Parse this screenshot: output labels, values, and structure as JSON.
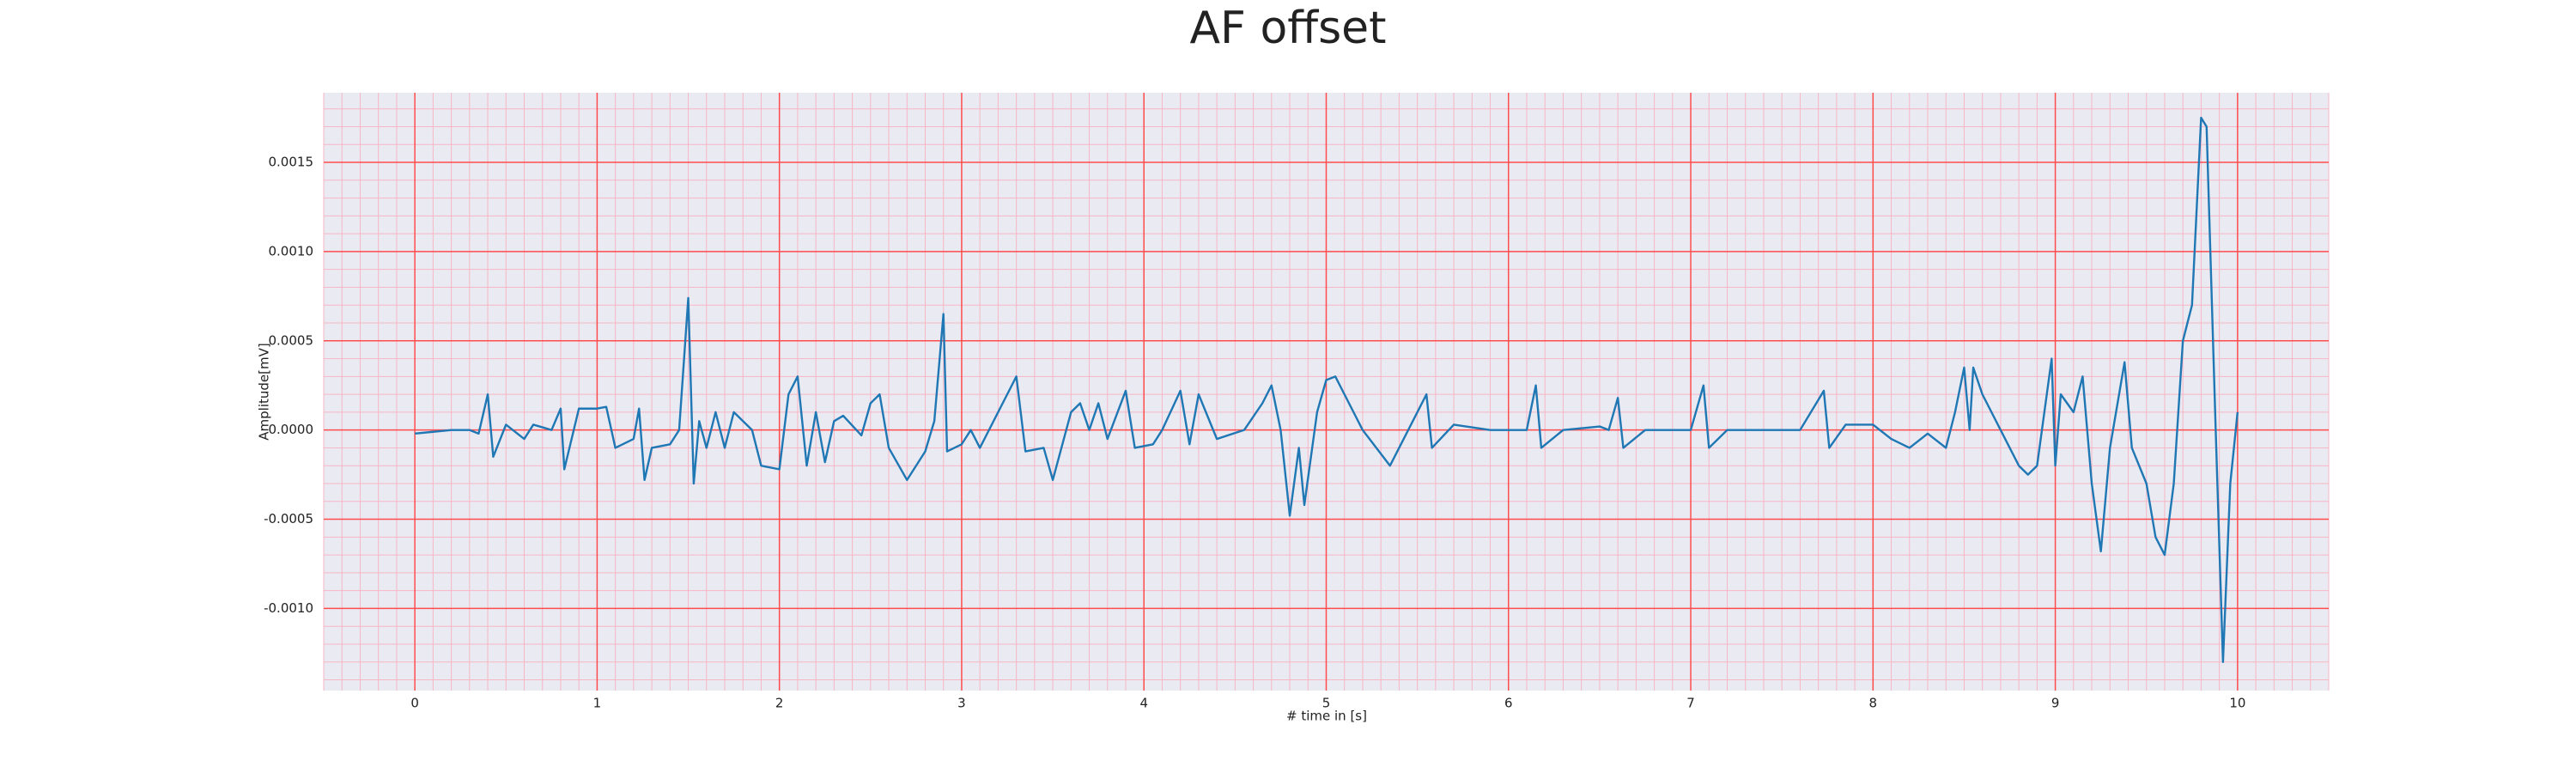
{
  "chart_data": {
    "type": "line",
    "title": "AF offset",
    "xlabel": "# time in [s]",
    "ylabel": "Amplitude[mV]",
    "xlim": [
      -0.5,
      10.5
    ],
    "ylim": [
      -0.00146,
      0.00189
    ],
    "xticks": [
      0,
      1,
      2,
      3,
      4,
      5,
      6,
      7,
      8,
      9,
      10
    ],
    "yticks": [
      {
        "value": -0.001,
        "label": "-0.0010"
      },
      {
        "value": -0.0005,
        "label": "-0.0005"
      },
      {
        "value": 0,
        "label": "0.0000"
      },
      {
        "value": 0.0005,
        "label": "0.0005"
      },
      {
        "value": 0.001,
        "label": "0.0010"
      },
      {
        "value": 0.0015,
        "label": "0.0015"
      }
    ],
    "grid": true,
    "minor_grid": {
      "x": 0.1,
      "y": 0.0001
    },
    "background": "#eaeaf2",
    "grid_color": "#ff4d4d",
    "minor_grid_color": "#f7b6c4",
    "series": [
      {
        "color": "#1f77b4",
        "x": [
          0,
          0.1,
          0.2,
          0.3,
          0.35,
          0.4,
          0.43,
          0.5,
          0.6,
          0.65,
          0.75,
          0.8,
          0.82,
          0.9,
          1.0,
          1.05,
          1.1,
          1.2,
          1.23,
          1.26,
          1.3,
          1.4,
          1.45,
          1.5,
          1.53,
          1.56,
          1.6,
          1.65,
          1.7,
          1.75,
          1.85,
          1.9,
          2.0,
          2.05,
          2.1,
          2.15,
          2.2,
          2.25,
          2.3,
          2.35,
          2.45,
          2.5,
          2.55,
          2.6,
          2.7,
          2.8,
          2.85,
          2.9,
          2.92,
          3.0,
          3.05,
          3.1,
          3.2,
          3.25,
          3.3,
          3.35,
          3.45,
          3.5,
          3.6,
          3.65,
          3.7,
          3.75,
          3.8,
          3.9,
          3.95,
          4.05,
          4.1,
          4.2,
          4.25,
          4.3,
          4.4,
          4.55,
          4.65,
          4.7,
          4.75,
          4.8,
          4.85,
          4.88,
          4.95,
          5.0,
          5.05,
          5.1,
          5.2,
          5.35,
          5.4,
          5.55,
          5.58,
          5.7,
          5.9,
          6.1,
          6.15,
          6.18,
          6.3,
          6.5,
          6.55,
          6.6,
          6.63,
          6.75,
          7.0,
          7.07,
          7.1,
          7.2,
          7.6,
          7.73,
          7.76,
          7.85,
          8.0,
          8.1,
          8.2,
          8.3,
          8.4,
          8.45,
          8.5,
          8.53,
          8.55,
          8.6,
          8.7,
          8.75,
          8.8,
          8.85,
          8.9,
          8.98,
          9.0,
          9.03,
          9.1,
          9.15,
          9.2,
          9.25,
          9.3,
          9.38,
          9.42,
          9.5,
          9.55,
          9.6,
          9.65,
          9.7,
          9.75,
          9.8,
          9.83,
          9.88,
          9.92,
          9.96,
          10.0
        ],
        "values": [
          -2e-05,
          -1e-05,
          0,
          0,
          -2e-05,
          0.0002,
          -0.00015,
          3e-05,
          -5e-05,
          3e-05,
          0,
          0.00012,
          -0.00022,
          0.00012,
          0.00012,
          0.00013,
          -0.0001,
          -5e-05,
          0.00012,
          -0.00028,
          -0.0001,
          -8e-05,
          0,
          0.00074,
          -0.0003,
          5e-05,
          -0.0001,
          0.0001,
          -0.0001,
          0.0001,
          0,
          -0.0002,
          -0.00022,
          0.0002,
          0.0003,
          -0.0002,
          0.0001,
          -0.00018,
          5e-05,
          8e-05,
          -3e-05,
          0.00015,
          0.0002,
          -0.0001,
          -0.00028,
          -0.00012,
          5e-05,
          0.00065,
          -0.00012,
          -8e-05,
          0,
          -0.0001,
          0.0001,
          0.0002,
          0.0003,
          -0.00012,
          -0.0001,
          -0.00028,
          0.0001,
          0.00015,
          0,
          0.00015,
          -5e-05,
          0.00022,
          -0.0001,
          -8e-05,
          0,
          0.00022,
          -8e-05,
          0.0002,
          -5e-05,
          0,
          0.00015,
          0.00025,
          0,
          -0.00048,
          -0.0001,
          -0.00042,
          0.0001,
          0.00028,
          0.0003,
          0.0002,
          0,
          -0.0002,
          -0.0001,
          0.0002,
          -0.0001,
          3e-05,
          0,
          0,
          0.00025,
          -0.0001,
          0,
          2e-05,
          0,
          0.00018,
          -0.0001,
          0,
          0,
          0.00025,
          -0.0001,
          0,
          0,
          0.00022,
          -0.0001,
          3e-05,
          3e-05,
          -5e-05,
          -0.0001,
          -2e-05,
          -0.0001,
          0.0001,
          0.00035,
          0,
          0.00035,
          0.0002,
          0,
          -0.0001,
          -0.0002,
          -0.00025,
          -0.0002,
          0.0004,
          -0.0002,
          0.0002,
          0.0001,
          0.0003,
          -0.0003,
          -0.00068,
          -0.0001,
          0.00038,
          -0.0001,
          -0.0003,
          -0.0006,
          -0.0007,
          -0.0003,
          0.0005,
          0.0007,
          0.00175,
          0.0017,
          0,
          -0.0013,
          -0.0003,
          0.0001
        ]
      }
    ]
  }
}
